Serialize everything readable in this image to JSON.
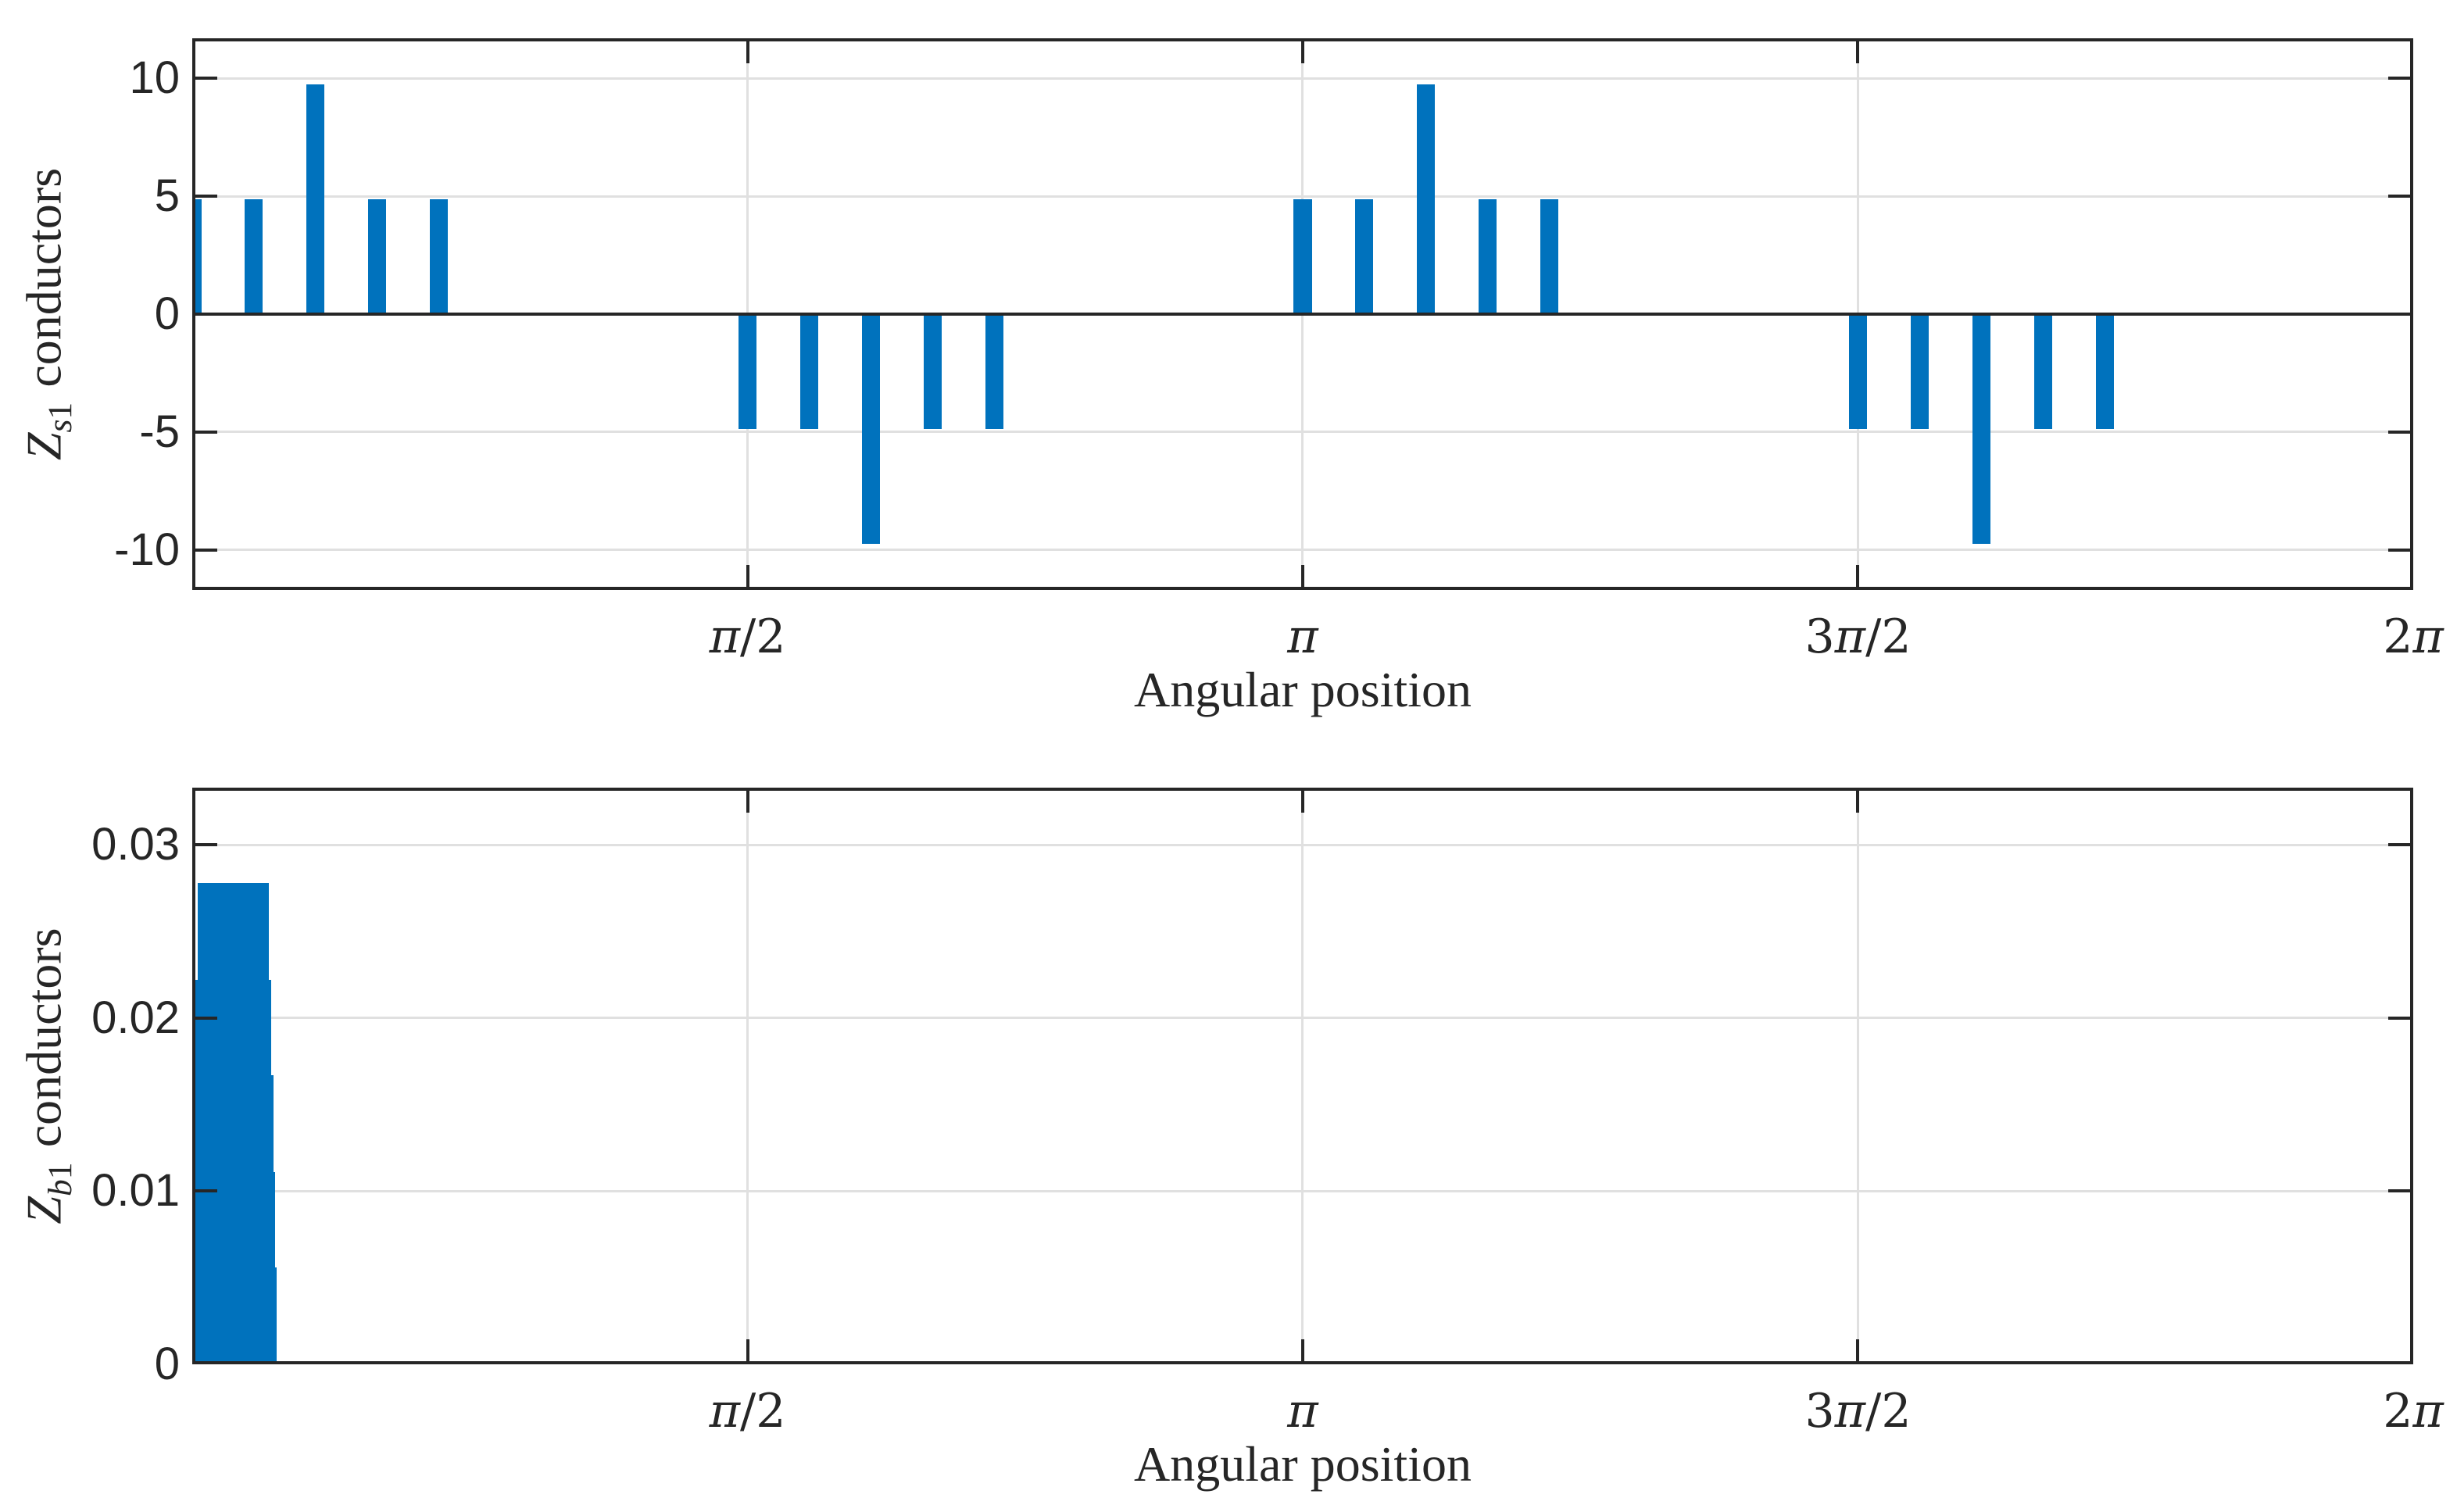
{
  "figure": {
    "background": "#ffffff",
    "bar_color": "#0072BD",
    "axis_color": "#262626",
    "grid_color": "#E0E0E0",
    "tick_label_color": "#262626"
  },
  "chart_data": [
    {
      "id": "top",
      "type": "bar",
      "title": "",
      "xlabel": "Angular position",
      "ylabel_var": "Z",
      "ylabel_sub_letter": "s",
      "ylabel_sub_digit": "1",
      "ylabel_rest": "conductors",
      "xlim": [
        0,
        6.28319
      ],
      "ylim": [
        -11.69,
        11.69
      ],
      "grid": true,
      "zero_line": true,
      "legend": "none",
      "xticks": [
        {
          "value": 1.5708,
          "label": "π/2"
        },
        {
          "value": 3.14159,
          "label": "π"
        },
        {
          "value": 4.71239,
          "label": "3π/2"
        },
        {
          "value": 6.28319,
          "label": "2π"
        }
      ],
      "yticks": [
        {
          "value": 10,
          "label": "10"
        },
        {
          "value": 5,
          "label": "5"
        },
        {
          "value": 0,
          "label": "0"
        },
        {
          "value": -5,
          "label": "-5"
        },
        {
          "value": -10,
          "label": "-10"
        }
      ],
      "bar_width_rad": 0.051,
      "slot_pitch_deg": 10,
      "bars": [
        {
          "angle_deg": 0,
          "value": 4.87
        },
        {
          "angle_deg": 10,
          "value": 4.87
        },
        {
          "angle_deg": 20,
          "value": 9.74
        },
        {
          "angle_deg": 30,
          "value": 4.87
        },
        {
          "angle_deg": 40,
          "value": 4.87
        },
        {
          "angle_deg": 90,
          "value": -4.87
        },
        {
          "angle_deg": 100,
          "value": -4.87
        },
        {
          "angle_deg": 110,
          "value": -9.74
        },
        {
          "angle_deg": 120,
          "value": -4.87
        },
        {
          "angle_deg": 130,
          "value": -4.87
        },
        {
          "angle_deg": 180,
          "value": 4.87
        },
        {
          "angle_deg": 190,
          "value": 4.87
        },
        {
          "angle_deg": 200,
          "value": 9.74
        },
        {
          "angle_deg": 210,
          "value": 4.87
        },
        {
          "angle_deg": 220,
          "value": 4.87
        },
        {
          "angle_deg": 270,
          "value": -4.87
        },
        {
          "angle_deg": 280,
          "value": -4.87
        },
        {
          "angle_deg": 290,
          "value": -9.74
        },
        {
          "angle_deg": 300,
          "value": -4.87
        },
        {
          "angle_deg": 310,
          "value": -4.87
        }
      ]
    },
    {
      "id": "bottom",
      "type": "bar",
      "title": "",
      "xlabel": "Angular position",
      "ylabel_var": "Z",
      "ylabel_sub_letter": "b",
      "ylabel_sub_digit": "1",
      "ylabel_rest": "conductors",
      "xlim": [
        0,
        6.28319
      ],
      "ylim": [
        0,
        0.0333
      ],
      "grid": true,
      "zero_line": false,
      "legend": "none",
      "xticks": [
        {
          "value": 1.5708,
          "label": "π/2"
        },
        {
          "value": 3.14159,
          "label": "π"
        },
        {
          "value": 4.71239,
          "label": "3π/2"
        },
        {
          "value": 6.28319,
          "label": "2π"
        }
      ],
      "yticks": [
        {
          "value": 0.03,
          "label": "0.03"
        },
        {
          "value": 0.02,
          "label": "0.02"
        },
        {
          "value": 0.01,
          "label": "0.01"
        },
        {
          "value": 0,
          "label": "0"
        }
      ],
      "levels": [
        {
          "x_start_rad": 0.015,
          "x_end_rad": 0.217,
          "height": 0.0278
        },
        {
          "x_start_rad": 0.007,
          "x_end_rad": 0.223,
          "height": 0.0222
        },
        {
          "x_start_rad": 0.0,
          "x_end_rad": 0.23,
          "height": 0.0167
        },
        {
          "x_start_rad": -0.002,
          "x_end_rad": 0.234,
          "height": 0.0111
        },
        {
          "x_start_rad": -0.004,
          "x_end_rad": 0.239,
          "height": 0.0056
        }
      ]
    }
  ]
}
